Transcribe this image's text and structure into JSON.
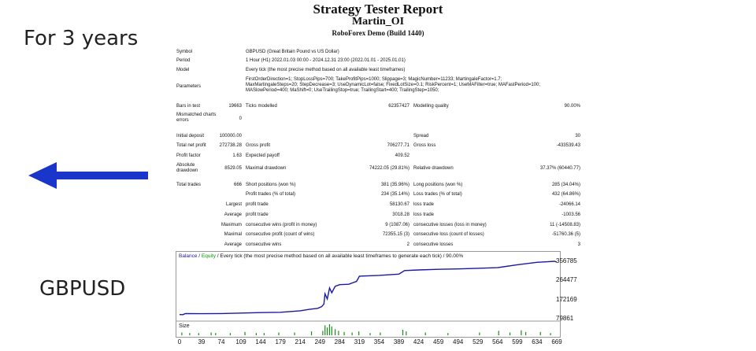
{
  "side": {
    "years": "For 3 years",
    "pair": "GBPUSD",
    "arrow_icon": "left-arrow-icon",
    "arrow_color": "#1a35c9"
  },
  "report": {
    "title": "Strategy Tester Report",
    "expert": "Martin_OI",
    "build": "RoboForex Demo (Build 1440)"
  },
  "info": {
    "symbol_label": "Symbol",
    "symbol": "GBPUSD (Great Britain Pound vs US Dollar)",
    "period_label": "Period",
    "period": "1 Hour (H1) 2022.01.03 00:00 - 2024.12.31 23:00 (2022.01.01 - 2025.01.01)",
    "model_label": "Model",
    "model": "Every tick (the most precise method based on all available least timeframes)",
    "parameters_label": "Parameters",
    "parameters": "FirstOrderDirection=1; StopLossPips=700; TakeProfitPips=1000; Slippage=3; MagicNumber=11233; MartingaleFactor=1.7; MaxMartingaleSteps=20; StepDecrease=3; UseDynamicLot=false; FixedLotSize=0.1; RiskPercent=1; UseMAFilter=true; MAFastPeriod=100; MASlowPeriod=400; MaShift=0; UseTrailingStop=true; TrailingStart=400; TrailingStep=1050;"
  },
  "bars": {
    "bars_label": "Bars in test",
    "bars": "19663",
    "ticks_label": "Ticks modelled",
    "ticks": "62357427",
    "quality_label": "Modelling quality",
    "quality": "90.00%",
    "mismatch_label": "Mismatched charts errors",
    "mismatch": "0"
  },
  "stats": {
    "initial_deposit_label": "Initial deposit",
    "initial_deposit": "100000.00",
    "spread_label": "Spread",
    "spread": "30",
    "net_profit_label": "Total net profit",
    "net_profit": "272738.28",
    "gross_profit_label": "Gross profit",
    "gross_profit": "706277.71",
    "gross_loss_label": "Gross loss",
    "gross_loss": "-433539.43",
    "profit_factor_label": "Profit factor",
    "profit_factor": "1.63",
    "expected_payoff_label": "Expected payoff",
    "expected_payoff": "409.52",
    "abs_dd_label": "Absolute drawdown",
    "abs_dd": "8529.05",
    "max_dd_label": "Maximal drawdown",
    "max_dd": "74222.05 (29.81%)",
    "rel_dd_label": "Relative drawdown",
    "rel_dd": "37.37% (60440.77)",
    "total_trades_label": "Total trades",
    "total_trades": "666",
    "short_label": "Short positions (won %)",
    "short": "381 (35.96%)",
    "long_label": "Long positions (won %)",
    "long": "285 (34.04%)",
    "profit_trades_label": "Profit trades (% of total)",
    "profit_trades": "234 (35.14%)",
    "loss_trades_label": "Loss trades (% of total)",
    "loss_trades": "432 (64.86%)",
    "largest_label": "Largest",
    "largest_profit_label": "profit trade",
    "largest_profit": "58130.67",
    "largest_loss_label": "loss trade",
    "largest_loss": "-24066.14",
    "average_label": "Average",
    "average_profit_label": "profit trade",
    "average_profit": "3018.28",
    "average_loss_label": "loss trade",
    "average_loss": "-1003.56",
    "maximum_label": "Maximum",
    "max_cons_wins_label": "consecutive wins (profit in money)",
    "max_cons_wins": "9 (1087.06)",
    "max_cons_losses_label": "consecutive losses (loss in money)",
    "max_cons_losses": "11 (-14508.83)",
    "maximal_label": "Maximal",
    "maximal_profit_label": "consecutive profit (count of wins)",
    "maximal_profit": "72355.15 (3)",
    "maximal_loss_label": "consecutive loss (count of losses)",
    "maximal_loss": "-51760.36 (5)",
    "average2_label": "Average",
    "avg_cons_wins_label": "consecutive wins",
    "avg_cons_wins": "2",
    "avg_cons_losses_label": "consecutive losses",
    "avg_cons_losses": "3"
  },
  "chart_data": {
    "type": "line",
    "heading_balance": "Balance",
    "heading_sep1": " / ",
    "heading_equity": "Equity",
    "heading_rest": " / Every tick (the most precise method based on all available least timeframes to generate each tick) / 90.00%",
    "size_label": "Size",
    "balance_color": "#1a1aa0",
    "equity_color": "#00a000",
    "size_color": "#1a8c1a",
    "x_ticks": [
      "0",
      "39",
      "74",
      "109",
      "144",
      "179",
      "214",
      "249",
      "284",
      "319",
      "354",
      "389",
      "424",
      "459",
      "494",
      "529",
      "564",
      "599",
      "634",
      "669"
    ],
    "y_ticks": [
      "356785",
      "264477",
      "172169",
      "79861"
    ],
    "xlim": [
      0,
      669
    ],
    "ylim": [
      79861,
      356785
    ],
    "balance": [
      [
        0,
        100000
      ],
      [
        6,
        99500
      ],
      [
        10,
        104500
      ],
      [
        39,
        104000
      ],
      [
        74,
        105000
      ],
      [
        109,
        107000
      ],
      [
        144,
        109500
      ],
      [
        179,
        111000
      ],
      [
        200,
        115000
      ],
      [
        214,
        118000
      ],
      [
        230,
        125000
      ],
      [
        245,
        130000
      ],
      [
        252,
        138000
      ],
      [
        256,
        150000
      ],
      [
        258,
        200000
      ],
      [
        262,
        175000
      ],
      [
        266,
        228000
      ],
      [
        270,
        205000
      ],
      [
        276,
        236000
      ],
      [
        284,
        244000
      ],
      [
        300,
        246000
      ],
      [
        314,
        260000
      ],
      [
        319,
        285000
      ],
      [
        354,
        289000
      ],
      [
        389,
        295000
      ],
      [
        399,
        312000
      ],
      [
        424,
        315000
      ],
      [
        459,
        318000
      ],
      [
        494,
        320000
      ],
      [
        529,
        323000
      ],
      [
        564,
        326000
      ],
      [
        599,
        340000
      ],
      [
        634,
        352000
      ],
      [
        650,
        354000
      ],
      [
        665,
        356785
      ],
      [
        669,
        353000
      ]
    ],
    "size_bars": [
      [
        4,
        0.25
      ],
      [
        18,
        0.2
      ],
      [
        34,
        0.2
      ],
      [
        56,
        0.25
      ],
      [
        64,
        0.2
      ],
      [
        90,
        0.2
      ],
      [
        116,
        0.3
      ],
      [
        136,
        0.2
      ],
      [
        150,
        0.2
      ],
      [
        176,
        0.25
      ],
      [
        204,
        0.25
      ],
      [
        234,
        0.35
      ],
      [
        254,
        0.4
      ],
      [
        258,
        0.9
      ],
      [
        262,
        0.7
      ],
      [
        266,
        1.0
      ],
      [
        270,
        0.8
      ],
      [
        276,
        0.55
      ],
      [
        282,
        0.4
      ],
      [
        292,
        0.3
      ],
      [
        306,
        0.25
      ],
      [
        318,
        0.35
      ],
      [
        338,
        0.2
      ],
      [
        356,
        0.25
      ],
      [
        396,
        0.5
      ],
      [
        402,
        0.35
      ],
      [
        436,
        0.25
      ],
      [
        476,
        0.2
      ],
      [
        532,
        0.25
      ],
      [
        566,
        0.4
      ],
      [
        586,
        0.25
      ],
      [
        606,
        0.45
      ],
      [
        614,
        0.3
      ],
      [
        640,
        0.3
      ],
      [
        658,
        0.2
      ]
    ]
  }
}
